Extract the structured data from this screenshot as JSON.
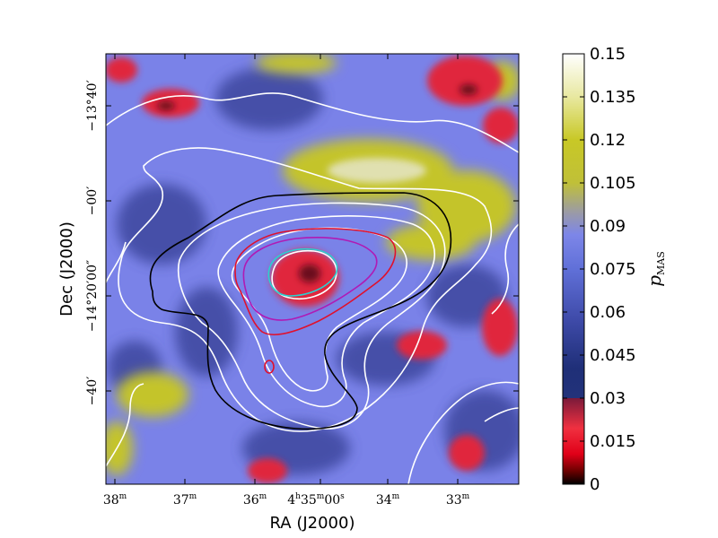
{
  "chart_data": {
    "type": "heatmap",
    "title": "",
    "xlabel": "RA (J2000)",
    "ylabel": "Dec (J2000)",
    "x_ticks": [
      "38",
      "37",
      "36",
      "4h35m00s",
      "34",
      "33"
    ],
    "x_ticks_text": {
      "t0": "38",
      "t0_sup": "m",
      "t1": "37",
      "t1_sup": "m",
      "t2": "36",
      "t2_sup": "m",
      "t3_a": "4",
      "t3_b": "h",
      "t3_c": "35",
      "t3_d": "m",
      "t3_e": "00",
      "t3_f": "s",
      "t4": "34",
      "t4_sup": "m",
      "t5": "33",
      "t5_sup": "m"
    },
    "y_ticks": [
      "−13°40′",
      "−00′",
      "−14°20′00″",
      "−40′"
    ],
    "y_ticks_text": {
      "t0_a": "−13°",
      "t0_b": "40′",
      "t1": "−00′",
      "t2_a": "−14°20′00″",
      "t3": "−40′"
    },
    "colorbar": {
      "label": "p_MAS",
      "label_main": "p",
      "label_sub": "MAS",
      "ticks": [
        "0",
        "0.015",
        "0.03",
        "0.045",
        "0.06",
        "0.075",
        "0.09",
        "0.105",
        "0.12",
        "0.135",
        "0.15"
      ],
      "range": [
        0,
        0.15
      ]
    },
    "colors": {
      "background_blue": "#7a82e8",
      "dark_blue": "#2a3a7e",
      "red": "#e0283c",
      "yellow": "#c8c828",
      "contour_white": "#ffffff",
      "contour_black": "#000000",
      "contour_red": "#e0102c",
      "contour_magenta": "#b01ab4",
      "contour_cyan": "#2ad0d0"
    }
  }
}
